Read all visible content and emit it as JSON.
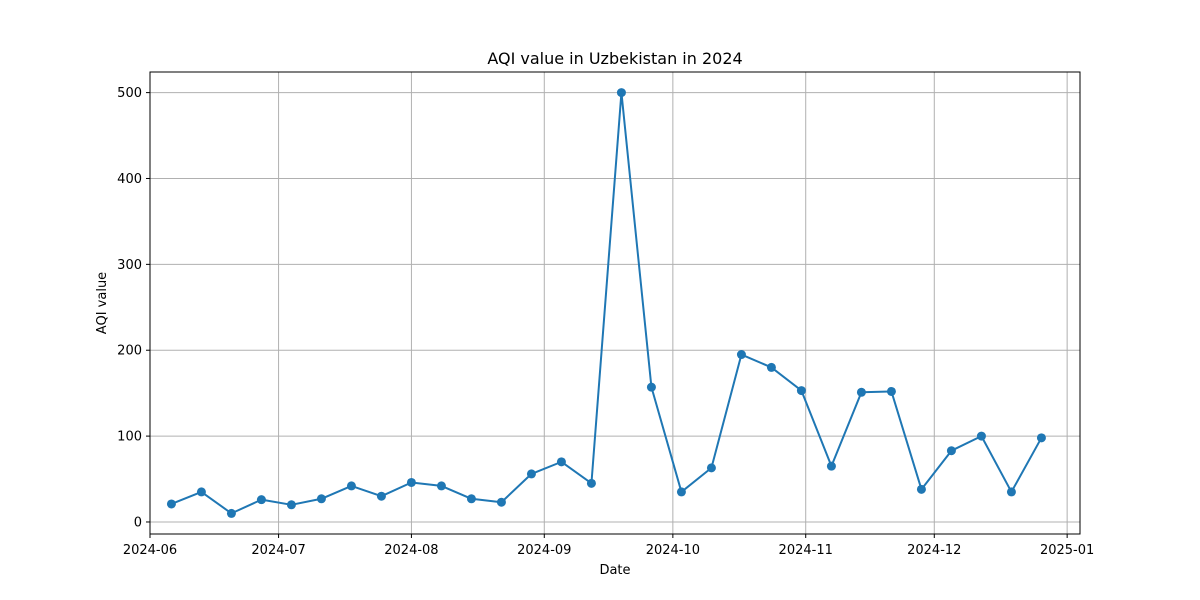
{
  "chart_data": {
    "type": "line",
    "title": "AQI value in Uzbekistan in 2024",
    "xlabel": "Date",
    "ylabel": "AQI value",
    "xlim": [
      "2024-06-01",
      "2025-01-04"
    ],
    "ylim": [
      -14,
      524
    ],
    "x_ticks": [
      "2024-06-01",
      "2024-07-01",
      "2024-08-01",
      "2024-09-01",
      "2024-10-01",
      "2024-11-01",
      "2024-12-01",
      "2025-01-01"
    ],
    "x_tick_labels": [
      "2024-06",
      "2024-07",
      "2024-08",
      "2024-09",
      "2024-10",
      "2024-11",
      "2024-12",
      "2025-01"
    ],
    "y_ticks": [
      0,
      100,
      200,
      300,
      400,
      500
    ],
    "y_tick_labels": [
      "0",
      "100",
      "200",
      "300",
      "400",
      "500"
    ],
    "grid": true,
    "marker": "circle",
    "color": "#1f77b4",
    "series": [
      {
        "x": [
          "2024-06-06",
          "2024-06-13",
          "2024-06-20",
          "2024-06-27",
          "2024-07-04",
          "2024-07-11",
          "2024-07-18",
          "2024-07-25",
          "2024-08-01",
          "2024-08-08",
          "2024-08-15",
          "2024-08-22",
          "2024-08-29",
          "2024-09-05",
          "2024-09-12",
          "2024-09-19",
          "2024-09-26",
          "2024-10-03",
          "2024-10-10",
          "2024-10-17",
          "2024-10-24",
          "2024-10-31",
          "2024-11-07",
          "2024-11-14",
          "2024-11-21",
          "2024-11-28",
          "2024-12-05",
          "2024-12-12",
          "2024-12-19",
          "2024-12-26"
        ],
        "values": [
          21,
          35,
          10,
          26,
          20,
          27,
          42,
          30,
          46,
          42,
          27,
          23,
          56,
          70,
          45,
          500,
          157,
          35,
          63,
          195,
          180,
          153,
          65,
          151,
          152,
          38,
          83,
          100,
          35,
          98
        ]
      }
    ]
  }
}
